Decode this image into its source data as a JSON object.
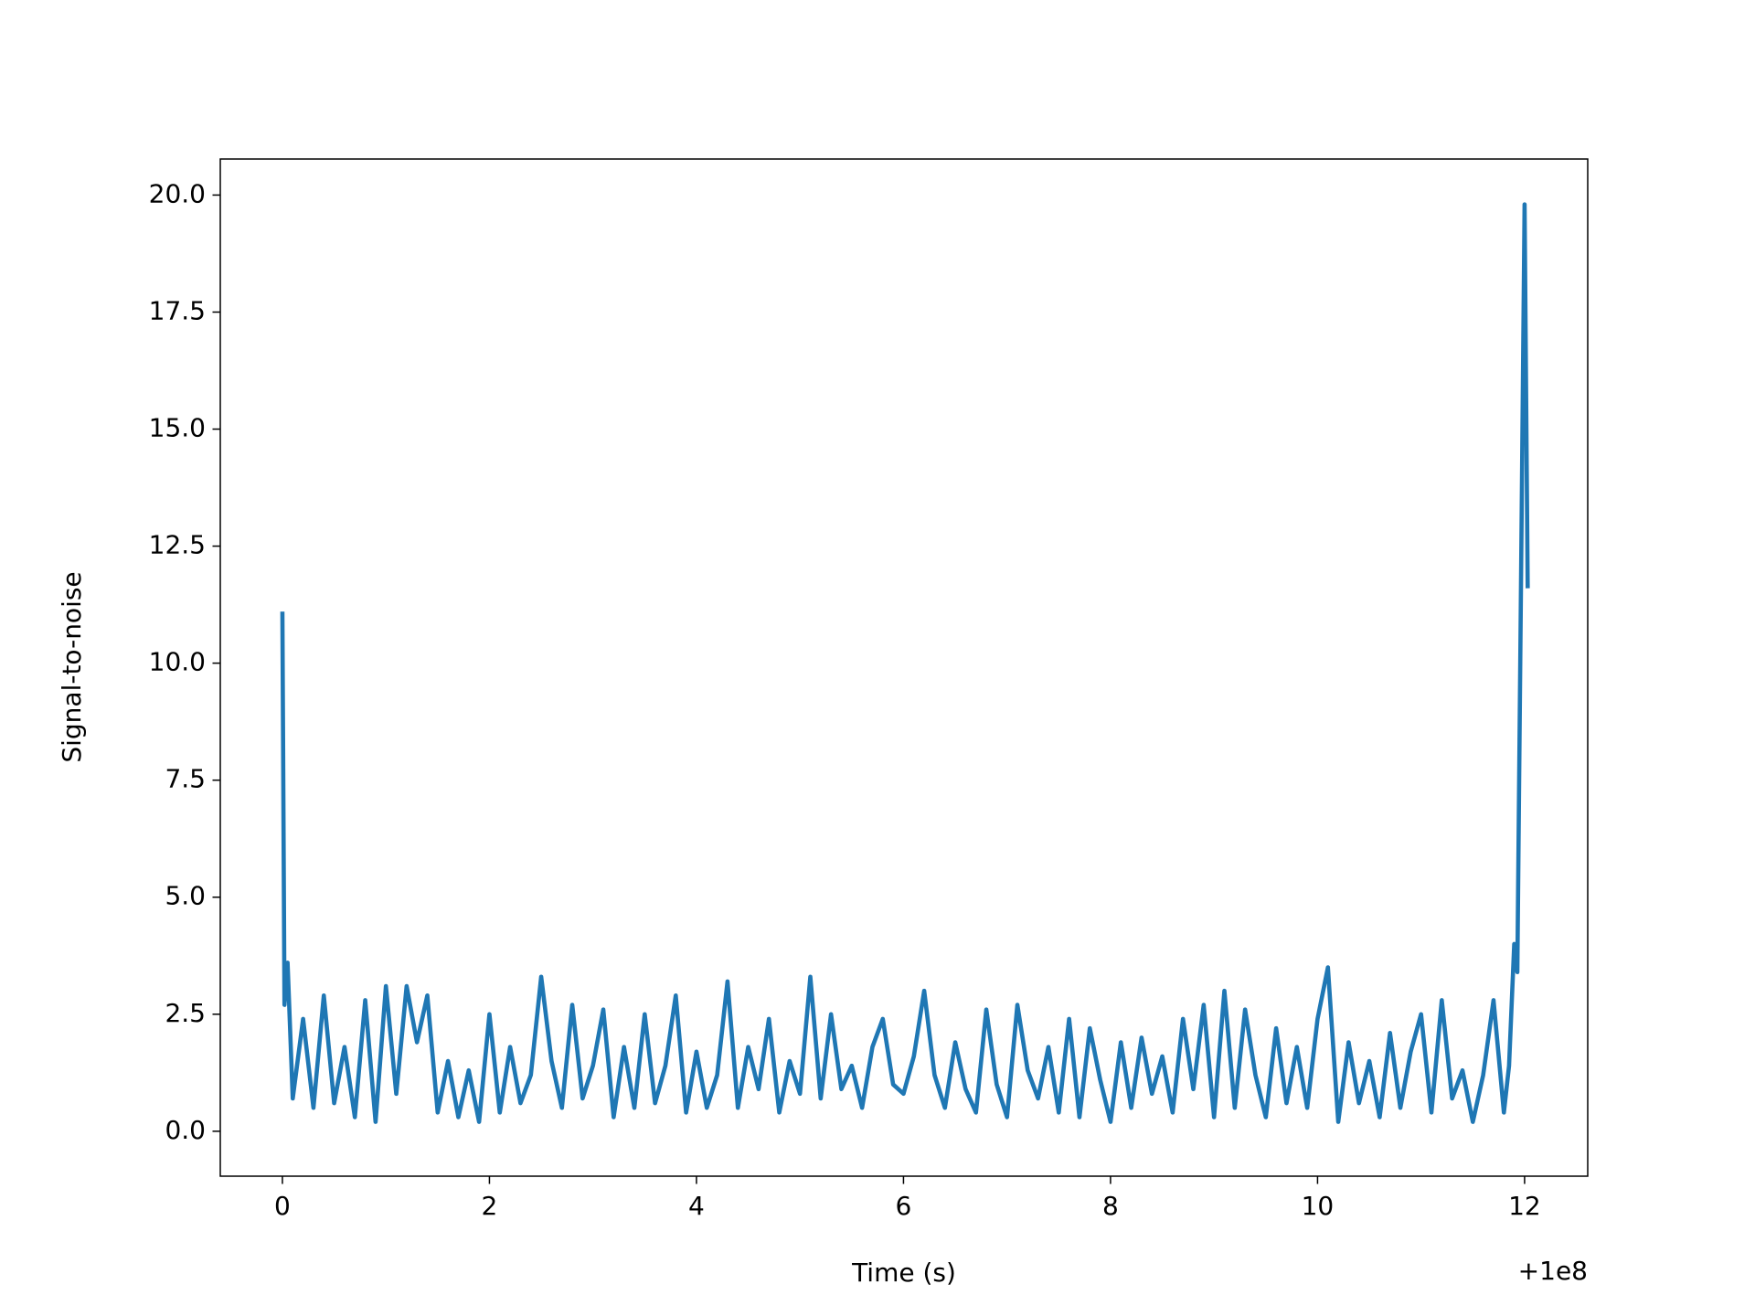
{
  "chart_data": {
    "type": "line",
    "x_label": "Time (s)",
    "y_label": "Signal-to-noise",
    "x_offset_label": "+1e8",
    "color": "#1f77b4",
    "xlim": [
      -0.6,
      12.61
    ],
    "ylim": [
      -0.96,
      20.77
    ],
    "xticks": [
      0,
      2,
      4,
      6,
      8,
      10,
      12
    ],
    "yticks": [
      {
        "value": 0,
        "label": "0.0"
      },
      {
        "value": 2.5,
        "label": "2.5"
      },
      {
        "value": 5,
        "label": "5.0"
      },
      {
        "value": 7.5,
        "label": "7.5"
      },
      {
        "value": 10,
        "label": "10.0"
      },
      {
        "value": 12.5,
        "label": "12.5"
      },
      {
        "value": 15,
        "label": "15.0"
      },
      {
        "value": 17.5,
        "label": "17.5"
      },
      {
        "value": 20,
        "label": "20.0"
      }
    ],
    "x": [
      0,
      0.02,
      0.05,
      0.1,
      0.2,
      0.3,
      0.4,
      0.5,
      0.6,
      0.7,
      0.8,
      0.9,
      1.0,
      1.1,
      1.2,
      1.3,
      1.4,
      1.5,
      1.6,
      1.7,
      1.8,
      1.9,
      2.0,
      2.1,
      2.2,
      2.3,
      2.4,
      2.5,
      2.6,
      2.7,
      2.8,
      2.9,
      3.0,
      3.1,
      3.2,
      3.3,
      3.4,
      3.5,
      3.6,
      3.7,
      3.8,
      3.9,
      4.0,
      4.1,
      4.2,
      4.3,
      4.4,
      4.5,
      4.6,
      4.7,
      4.8,
      4.9,
      5.0,
      5.1,
      5.2,
      5.3,
      5.4,
      5.5,
      5.6,
      5.7,
      5.8,
      5.9,
      6.0,
      6.1,
      6.2,
      6.3,
      6.4,
      6.5,
      6.6,
      6.7,
      6.8,
      6.9,
      7.0,
      7.1,
      7.2,
      7.3,
      7.4,
      7.5,
      7.6,
      7.7,
      7.8,
      7.9,
      8.0,
      8.1,
      8.2,
      8.3,
      8.4,
      8.5,
      8.6,
      8.7,
      8.8,
      8.9,
      9.0,
      9.1,
      9.2,
      9.3,
      9.4,
      9.5,
      9.6,
      9.7,
      9.8,
      9.9,
      10.0,
      10.1,
      10.2,
      10.3,
      10.4,
      10.5,
      10.6,
      10.7,
      10.8,
      10.9,
      11.0,
      11.1,
      11.2,
      11.3,
      11.4,
      11.5,
      11.6,
      11.7,
      11.8,
      11.85,
      11.9,
      11.93,
      12.0,
      12.03
    ],
    "values": [
      11.1,
      2.7,
      3.6,
      0.7,
      2.4,
      0.5,
      2.9,
      0.6,
      1.8,
      0.3,
      2.8,
      0.2,
      3.1,
      0.8,
      3.1,
      1.9,
      2.9,
      0.4,
      1.5,
      0.3,
      1.3,
      0.2,
      2.5,
      0.4,
      1.8,
      0.6,
      1.2,
      3.3,
      1.5,
      0.5,
      2.7,
      0.7,
      1.4,
      2.6,
      0.3,
      1.8,
      0.5,
      2.5,
      0.6,
      1.4,
      2.9,
      0.4,
      1.7,
      0.5,
      1.2,
      3.2,
      0.5,
      1.8,
      0.9,
      2.4,
      0.4,
      1.5,
      0.8,
      3.3,
      0.7,
      2.5,
      0.9,
      1.4,
      0.5,
      1.8,
      2.4,
      1.0,
      0.8,
      1.6,
      3.0,
      1.2,
      0.5,
      1.9,
      0.9,
      0.4,
      2.6,
      1.0,
      0.3,
      2.7,
      1.3,
      0.7,
      1.8,
      0.4,
      2.4,
      0.3,
      2.2,
      1.1,
      0.2,
      1.9,
      0.5,
      2.0,
      0.8,
      1.6,
      0.4,
      2.4,
      0.9,
      2.7,
      0.3,
      3.0,
      0.5,
      2.6,
      1.2,
      0.3,
      2.2,
      0.6,
      1.8,
      0.5,
      2.4,
      3.5,
      0.2,
      1.9,
      0.6,
      1.5,
      0.3,
      2.1,
      0.5,
      1.7,
      2.5,
      0.4,
      2.8,
      0.7,
      1.3,
      0.2,
      1.2,
      2.8,
      0.4,
      1.4,
      4.0,
      3.4,
      19.8,
      11.6
    ]
  }
}
